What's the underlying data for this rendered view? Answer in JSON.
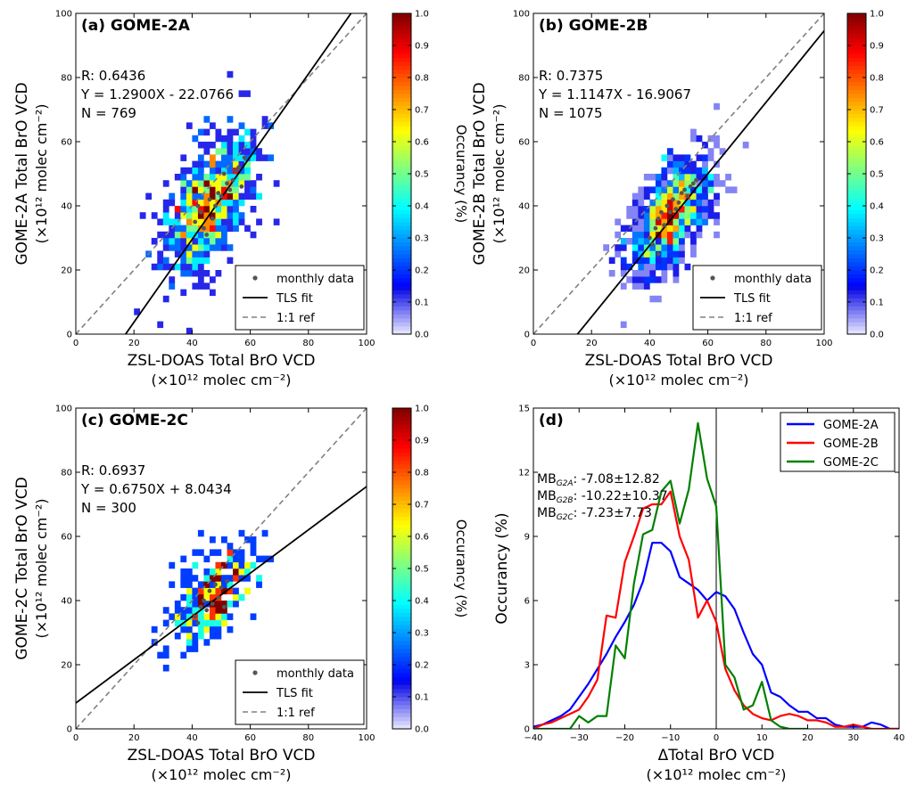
{
  "figure": {
    "colorbar": {
      "label": "Occurancy (%)",
      "ticks": [
        "0.0",
        "0.1",
        "0.2",
        "0.3",
        "0.4",
        "0.5",
        "0.6",
        "0.7",
        "0.8",
        "0.9",
        "1.0"
      ]
    }
  },
  "chart_data": [
    {
      "type": "heatmap",
      "panel_title": "(a) GOME-2A",
      "xlabel_1": "ZSL-DOAS Total BrO VCD",
      "xlabel_2": "(×10¹² molec cm⁻²)",
      "ylabel_1": "GOME-2A Total BrO VCD",
      "ylabel_2": "(×10¹² molec cm⁻²)",
      "xlim": [
        0,
        100
      ],
      "ylim": [
        0,
        100
      ],
      "xticks": [
        0,
        20,
        40,
        60,
        80,
        100
      ],
      "yticks": [
        0,
        20,
        40,
        60,
        80,
        100
      ],
      "stats": [
        "R: 0.6436",
        "Y = 1.2900X - 22.0766",
        "N = 769"
      ],
      "fit": {
        "slope": 1.29,
        "intercept": -22.0766
      },
      "legend": [
        "monthly data",
        "TLS fit",
        "1:1 ref"
      ],
      "density": {
        "center": [
          46,
          40
        ],
        "spread": [
          8,
          11
        ],
        "n": 769
      },
      "monthly_points": [
        [
          41,
          35
        ],
        [
          43,
          38
        ],
        [
          44,
          33
        ],
        [
          46,
          42
        ],
        [
          47,
          36
        ],
        [
          48,
          40
        ],
        [
          50,
          43
        ],
        [
          52,
          47
        ],
        [
          53,
          45
        ],
        [
          54,
          48
        ],
        [
          55,
          51
        ],
        [
          56,
          52
        ],
        [
          58,
          55
        ],
        [
          45,
          31
        ],
        [
          49,
          44
        ],
        [
          51,
          50
        ],
        [
          42,
          40
        ],
        [
          57,
          46
        ]
      ]
    },
    {
      "type": "heatmap",
      "panel_title": "(b) GOME-2B",
      "xlabel_1": "ZSL-DOAS Total BrO VCD",
      "xlabel_2": "(×10¹² molec cm⁻²)",
      "ylabel_1": "GOME-2B Total BrO VCD",
      "ylabel_2": "(×10¹² molec cm⁻²)",
      "xlim": [
        0,
        100
      ],
      "ylim": [
        0,
        100
      ],
      "xticks": [
        0,
        20,
        40,
        60,
        80,
        100
      ],
      "yticks": [
        0,
        20,
        40,
        60,
        80,
        100
      ],
      "stats": [
        "R: 0.7375",
        "Y = 1.1147X - 16.9067",
        "N = 1075"
      ],
      "fit": {
        "slope": 1.1147,
        "intercept": -16.9067
      },
      "legend": [
        "monthly data",
        "TLS fit",
        "1:1 ref"
      ],
      "density": {
        "center": [
          47,
          37
        ],
        "spread": [
          7,
          9
        ],
        "n": 1075
      },
      "monthly_points": [
        [
          40,
          30
        ],
        [
          42,
          33
        ],
        [
          43,
          36
        ],
        [
          44,
          38
        ],
        [
          45,
          34
        ],
        [
          46,
          40
        ],
        [
          47,
          38
        ],
        [
          48,
          42
        ],
        [
          50,
          41
        ],
        [
          51,
          44
        ],
        [
          52,
          45
        ],
        [
          54,
          46
        ],
        [
          55,
          47
        ],
        [
          41,
          28
        ],
        [
          43,
          25
        ],
        [
          49,
          39
        ],
        [
          56,
          48
        ],
        [
          53,
          43
        ]
      ]
    },
    {
      "type": "heatmap",
      "panel_title": "(c) GOME-2C",
      "xlabel_1": "ZSL-DOAS Total BrO VCD",
      "xlabel_2": "(×10¹² molec cm⁻²)",
      "ylabel_1": "GOME-2C Total BrO VCD",
      "ylabel_2": "(×10¹² molec cm⁻²)",
      "xlim": [
        0,
        100
      ],
      "ylim": [
        0,
        100
      ],
      "xticks": [
        0,
        20,
        40,
        60,
        80,
        100
      ],
      "yticks": [
        0,
        20,
        40,
        60,
        80,
        100
      ],
      "stats": [
        "R: 0.6937",
        "Y = 0.6750X + 8.0434",
        "N = 300"
      ],
      "fit": {
        "slope": 0.675,
        "intercept": 8.0434
      },
      "legend": [
        "monthly data",
        "TLS fit",
        "1:1 ref"
      ],
      "density": {
        "center": [
          47,
          41
        ],
        "spread": [
          7,
          8
        ],
        "n": 300
      },
      "monthly_points": [
        [
          41,
          35
        ],
        [
          43,
          38
        ],
        [
          44,
          40
        ],
        [
          45,
          37
        ],
        [
          46,
          43
        ],
        [
          47,
          39
        ],
        [
          48,
          45
        ],
        [
          49,
          41
        ],
        [
          50,
          44
        ],
        [
          52,
          46
        ],
        [
          42,
          33
        ],
        [
          51,
          38
        ]
      ]
    },
    {
      "type": "line",
      "panel_title": "(d)",
      "xlabel_1": "ΔTotal BrO VCD",
      "xlabel_2": "(×10¹² molec cm⁻²)",
      "ylabel": "Occurancy (%)",
      "xlim": [
        -40,
        40
      ],
      "ylim": [
        0,
        15
      ],
      "xticks": [
        -40,
        -30,
        -20,
        -10,
        0,
        10,
        20,
        30,
        40
      ],
      "yticks": [
        0,
        3,
        6,
        9,
        12,
        15
      ],
      "annotations": [
        {
          "sub": "G2A",
          "value": ": -7.08±12.82"
        },
        {
          "sub": "G2B",
          "value": ": -10.22±10.37"
        },
        {
          "sub": "G2C",
          "value": ": -7.23±7.73"
        }
      ],
      "annotation_prefix": "MB",
      "series": [
        {
          "name": "GOME-2A",
          "color": "#0000ff",
          "x": [
            -40,
            -38,
            -36,
            -34,
            -32,
            -30,
            -28,
            -26,
            -24,
            -22,
            -20,
            -18,
            -16,
            -14,
            -12,
            -10,
            -8,
            -6,
            -4,
            -2,
            0,
            2,
            4,
            6,
            8,
            10,
            12,
            14,
            16,
            18,
            20,
            22,
            24,
            26,
            28,
            30,
            32,
            34,
            36,
            38,
            40
          ],
          "y": [
            0.1,
            0.2,
            0.4,
            0.6,
            0.9,
            1.5,
            2.1,
            2.8,
            3.5,
            4.3,
            5.0,
            5.8,
            6.9,
            8.7,
            8.7,
            8.3,
            7.1,
            6.8,
            6.5,
            6.0,
            6.4,
            6.2,
            5.6,
            4.5,
            3.5,
            3.0,
            1.7,
            1.5,
            1.1,
            0.8,
            0.8,
            0.5,
            0.5,
            0.2,
            0.1,
            0.1,
            0.1,
            0.3,
            0.2,
            0.0,
            0.0
          ]
        },
        {
          "name": "GOME-2B",
          "color": "#ff0000",
          "x": [
            -40,
            -38,
            -36,
            -34,
            -32,
            -30,
            -28,
            -26,
            -24,
            -22,
            -20,
            -18,
            -16,
            -14,
            -12,
            -10,
            -8,
            -6,
            -4,
            -2,
            0,
            2,
            4,
            6,
            8,
            10,
            12,
            14,
            16,
            18,
            20,
            22,
            24,
            26,
            28,
            30,
            32,
            34,
            36,
            38,
            40
          ],
          "y": [
            0.0,
            0.2,
            0.3,
            0.5,
            0.7,
            0.9,
            1.5,
            2.3,
            5.3,
            5.2,
            7.8,
            9.0,
            10.3,
            10.5,
            10.5,
            11.1,
            9.0,
            7.9,
            5.2,
            6.0,
            5.0,
            2.8,
            1.8,
            1.1,
            0.7,
            0.5,
            0.4,
            0.6,
            0.7,
            0.6,
            0.4,
            0.4,
            0.3,
            0.1,
            0.1,
            0.2,
            0.1,
            0.0,
            0.0,
            0.0,
            0.0
          ]
        },
        {
          "name": "GOME-2C",
          "color": "#008000",
          "x": [
            -40,
            -38,
            -36,
            -34,
            -32,
            -30,
            -28,
            -26,
            -24,
            -22,
            -20,
            -18,
            -16,
            -14,
            -12,
            -10,
            -8,
            -6,
            -4,
            -2,
            0,
            2,
            4,
            6,
            8,
            10,
            12,
            14,
            16,
            18,
            20
          ],
          "y": [
            0.0,
            0.0,
            0.0,
            0.0,
            0.0,
            0.6,
            0.3,
            0.6,
            0.6,
            3.9,
            3.3,
            6.8,
            9.1,
            9.3,
            11.1,
            11.6,
            9.6,
            11.2,
            14.3,
            11.7,
            10.4,
            3.0,
            2.4,
            0.9,
            1.1,
            2.2,
            0.4,
            0.1,
            0.0,
            0.0,
            0.0
          ]
        }
      ]
    }
  ]
}
